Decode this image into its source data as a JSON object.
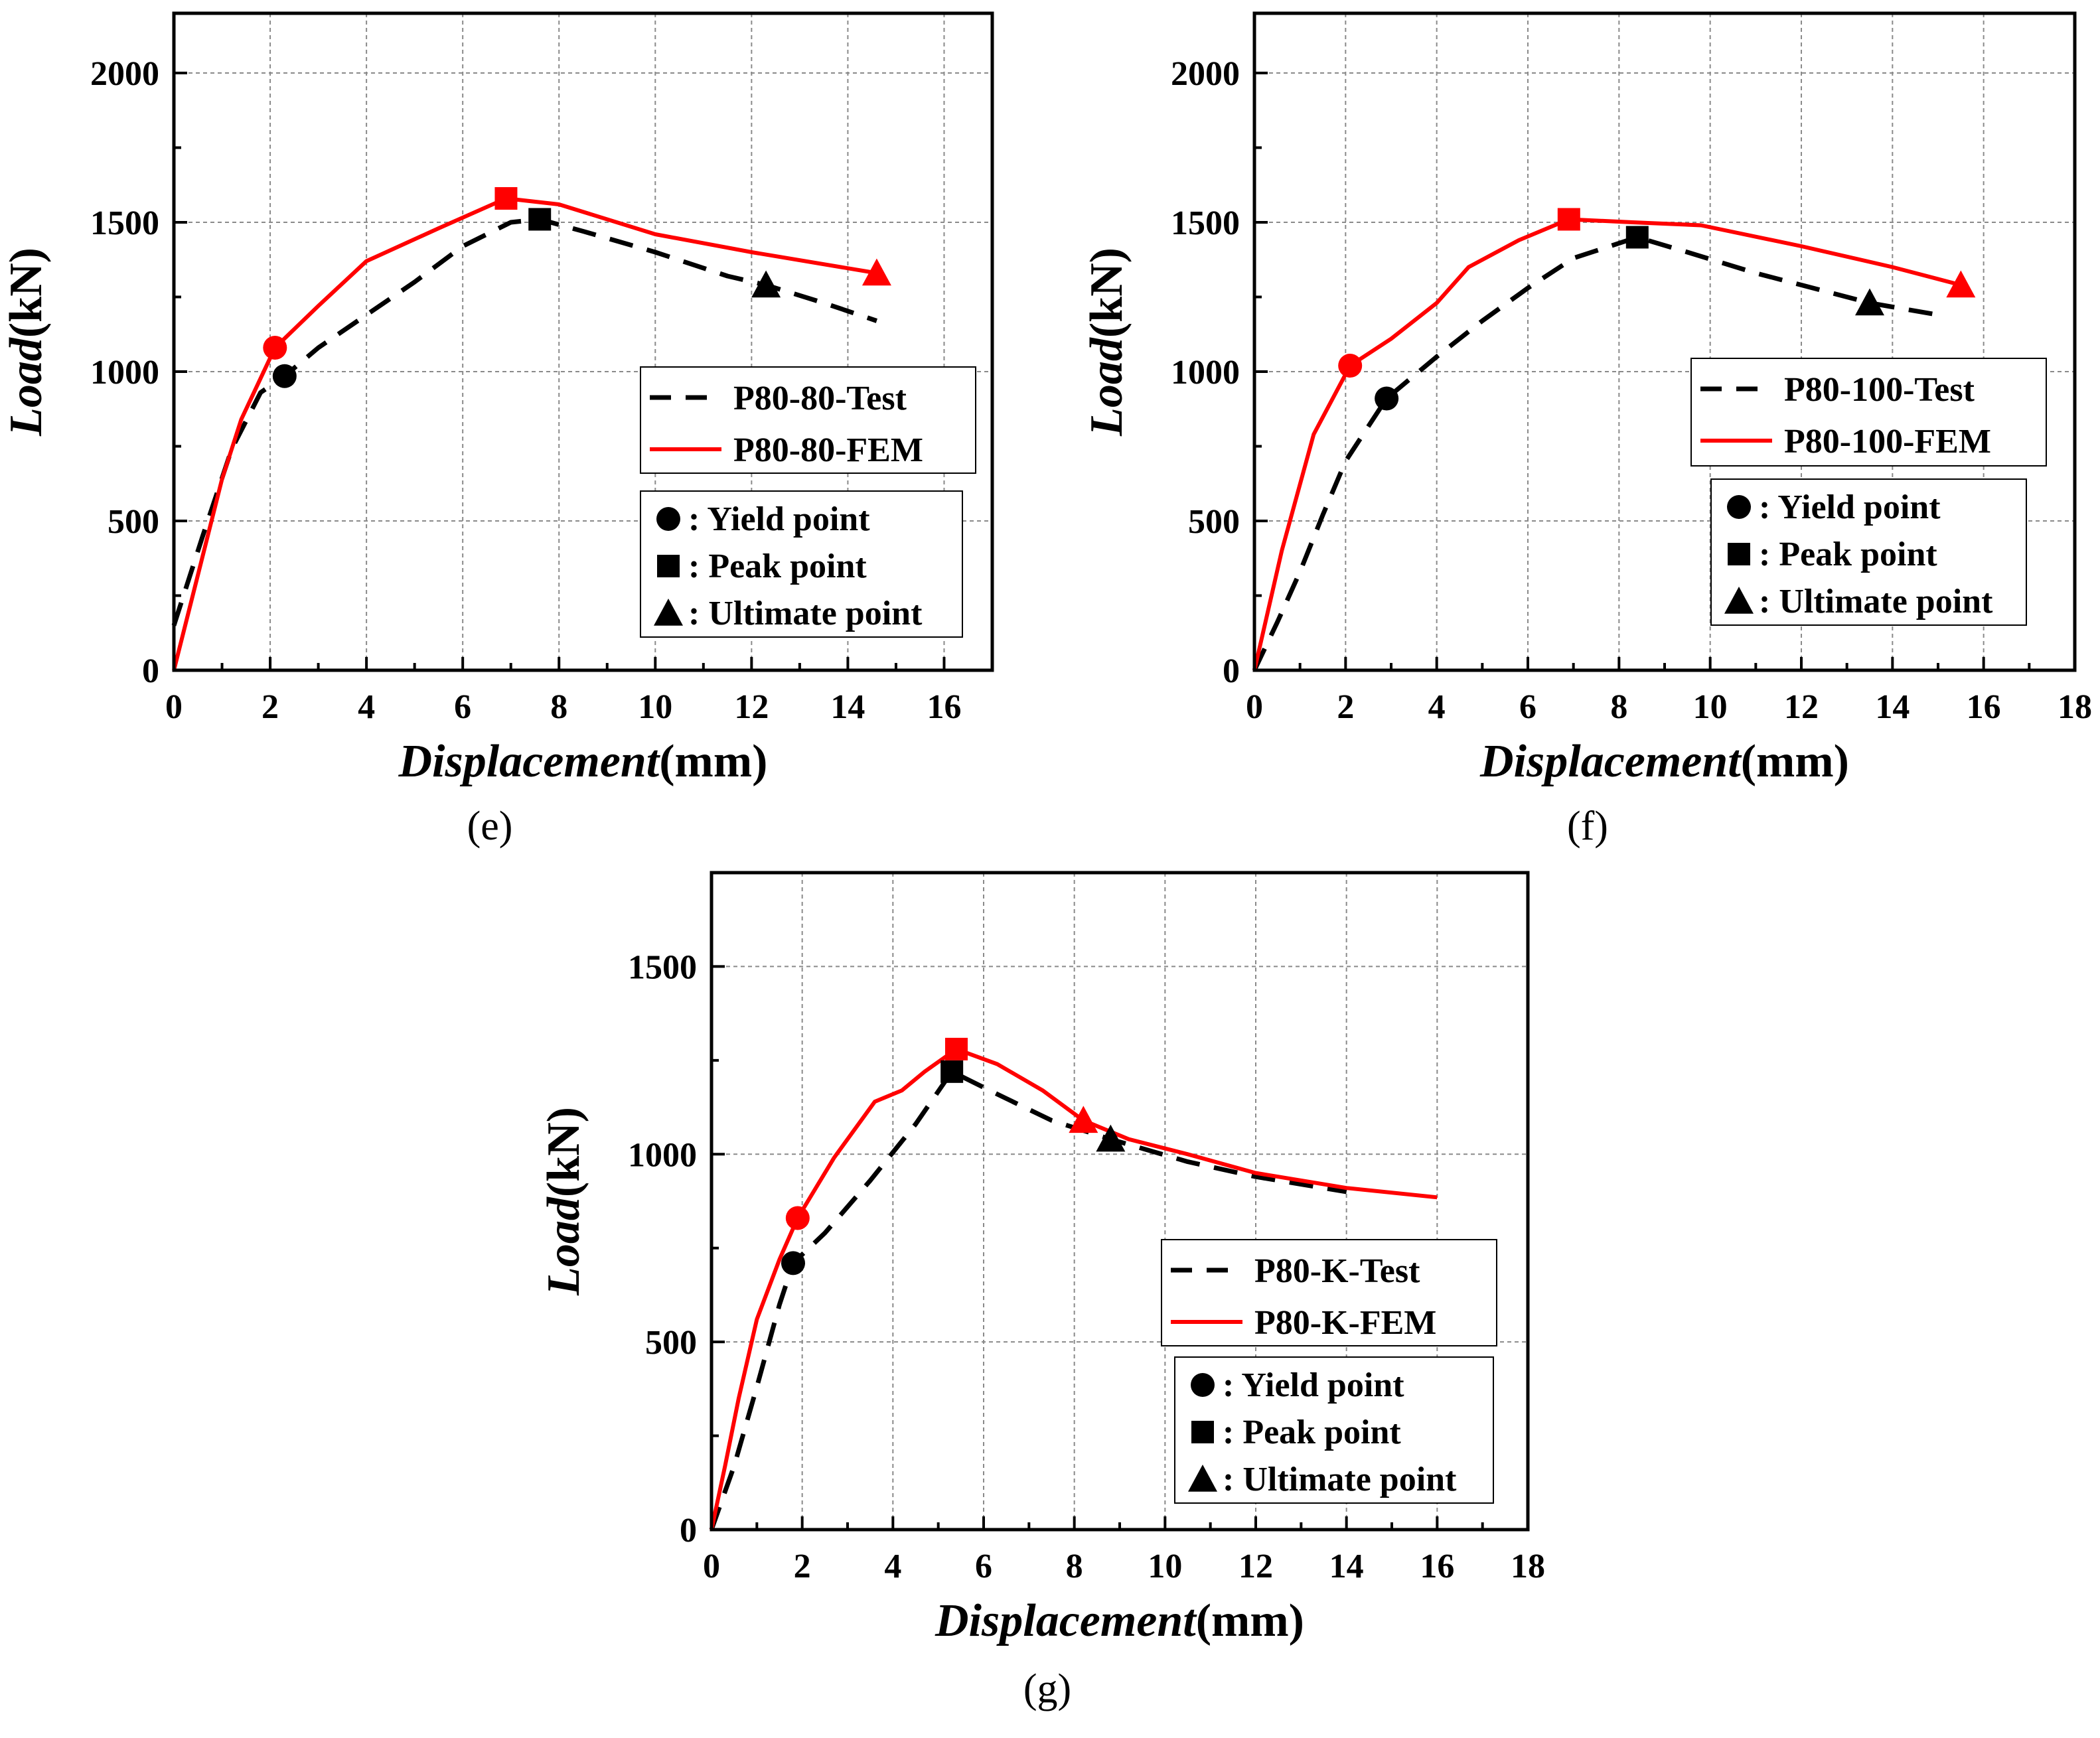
{
  "chart_data": [
    {
      "type": "line",
      "panel": "(e)",
      "xlabel_italic": "Displacement",
      "xlabel_unit": "(mm)",
      "ylabel_italic": "Load",
      "ylabel_unit": "(kN)",
      "xlim": [
        0,
        17
      ],
      "ylim": [
        0,
        2200
      ],
      "xticks": [
        0,
        2,
        4,
        6,
        8,
        10,
        12,
        14,
        16
      ],
      "yticks": [
        0,
        500,
        1000,
        1500,
        2000
      ],
      "grid": true,
      "legend": {
        "placement": "right-middle",
        "entries": [
          "P80-80-Test",
          "P80-80-FEM"
        ]
      },
      "marker_legend": {
        "placement": "bottom-right",
        "entries": [
          ": Yield point",
          ": Peak point",
          ": Ultimate point"
        ]
      },
      "series": [
        {
          "name": "P80-80-Test",
          "color": "#000000",
          "style": "dashed",
          "x": [
            0,
            0.6,
            1.2,
            1.8,
            2.3,
            3.0,
            4.0,
            5.0,
            6.0,
            7.0,
            7.6,
            8.5,
            10.0,
            11.5,
            12.3,
            13.5,
            14.6
          ],
          "y": [
            150,
            450,
            740,
            930,
            985,
            1080,
            1190,
            1300,
            1420,
            1500,
            1510,
            1470,
            1400,
            1320,
            1290,
            1230,
            1170
          ],
          "yield": [
            2.3,
            985
          ],
          "peak": [
            7.6,
            1510
          ],
          "ultimate": [
            12.3,
            1290
          ]
        },
        {
          "name": "P80-80-FEM",
          "color": "#ff0000",
          "style": "solid",
          "x": [
            0,
            0.5,
            1.0,
            1.4,
            2.1,
            3.0,
            4.0,
            5.5,
            6.9,
            8.0,
            10.0,
            12.0,
            14.6
          ],
          "y": [
            0,
            320,
            640,
            840,
            1080,
            1220,
            1370,
            1480,
            1580,
            1560,
            1460,
            1400,
            1330
          ],
          "yield": [
            2.1,
            1080
          ],
          "peak": [
            6.9,
            1580
          ],
          "ultimate": [
            14.6,
            1330
          ]
        }
      ]
    },
    {
      "type": "line",
      "panel": "(f)",
      "xlabel_italic": "Displacement",
      "xlabel_unit": "(mm)",
      "ylabel_italic": "Load",
      "ylabel_unit": "(kN)",
      "xlim": [
        0,
        18
      ],
      "ylim": [
        0,
        2200
      ],
      "xticks": [
        0,
        2,
        4,
        6,
        8,
        10,
        12,
        14,
        16,
        18
      ],
      "yticks": [
        0,
        500,
        1000,
        1500,
        2000
      ],
      "grid": true,
      "legend": {
        "placement": "right-middle",
        "entries": [
          "P80-100-Test",
          "P80-100-FEM"
        ]
      },
      "marker_legend": {
        "placement": "bottom-right",
        "entries": [
          ": Yield point",
          ": Peak point",
          ": Ultimate point"
        ]
      },
      "series": [
        {
          "name": "P80-100-Test",
          "color": "#000000",
          "style": "dashed",
          "x": [
            0,
            0.5,
            1.0,
            1.5,
            2.0,
            2.9,
            4.0,
            5.0,
            6.0,
            7.0,
            8.4,
            9.5,
            11.0,
            12.5,
            13.5,
            15.0
          ],
          "y": [
            0,
            160,
            330,
            520,
            700,
            910,
            1050,
            1170,
            1280,
            1380,
            1450,
            1400,
            1330,
            1270,
            1230,
            1190
          ],
          "yield": [
            2.9,
            910
          ],
          "peak": [
            8.4,
            1450
          ],
          "ultimate": [
            13.5,
            1230
          ]
        },
        {
          "name": "P80-100-FEM",
          "color": "#ff0000",
          "style": "solid",
          "x": [
            0,
            0.6,
            1.3,
            2.1,
            3.0,
            4.0,
            4.7,
            5.8,
            6.9,
            8.3,
            9.8,
            12.0,
            14.0,
            15.5
          ],
          "y": [
            0,
            400,
            790,
            1020,
            1110,
            1230,
            1350,
            1440,
            1510,
            1500,
            1490,
            1420,
            1350,
            1290
          ],
          "yield": [
            2.1,
            1020
          ],
          "peak": [
            6.9,
            1510
          ],
          "ultimate": [
            15.5,
            1290
          ]
        }
      ]
    },
    {
      "type": "line",
      "panel": "(g)",
      "xlabel_italic": "Displacement",
      "xlabel_unit": "(mm)",
      "ylabel_italic": "Load",
      "ylabel_unit": "(kN)",
      "xlim": [
        0,
        18
      ],
      "ylim": [
        0,
        1750
      ],
      "xticks": [
        0,
        2,
        4,
        6,
        8,
        10,
        12,
        14,
        16,
        18
      ],
      "yticks": [
        0,
        500,
        1000,
        1500
      ],
      "grid": true,
      "legend": {
        "placement": "right-middle",
        "entries": [
          "P80-K-Test",
          "P80-K-FEM"
        ]
      },
      "marker_legend": {
        "placement": "bottom-right",
        "entries": [
          ": Yield point",
          ": Peak point",
          ": Ultimate point"
        ]
      },
      "series": [
        {
          "name": "P80-K-Test",
          "color": "#000000",
          "style": "dashed",
          "x": [
            0,
            0.5,
            1.0,
            1.5,
            1.8,
            2.5,
            3.5,
            4.5,
            5.3,
            6.3,
            7.5,
            8.8,
            10.5,
            12.0,
            13.5,
            14.0
          ],
          "y": [
            0,
            170,
            380,
            600,
            710,
            790,
            930,
            1080,
            1220,
            1160,
            1090,
            1040,
            980,
            940,
            910,
            900
          ],
          "yield": [
            1.8,
            710
          ],
          "peak": [
            5.3,
            1220
          ],
          "ultimate": [
            8.8,
            1040
          ]
        },
        {
          "name": "P80-K-FEM",
          "color": "#ff0000",
          "style": "solid",
          "x": [
            0,
            0.3,
            0.6,
            1.0,
            1.5,
            1.9,
            2.7,
            3.6,
            4.2,
            4.7,
            5.4,
            6.3,
            7.3,
            8.2,
            9.2,
            10.5,
            12.0,
            14.0,
            16.0
          ],
          "y": [
            0,
            170,
            350,
            560,
            720,
            830,
            990,
            1140,
            1170,
            1220,
            1280,
            1240,
            1170,
            1090,
            1040,
            1000,
            950,
            910,
            885
          ],
          "yield": [
            1.9,
            830
          ],
          "peak": [
            5.4,
            1280
          ],
          "ultimate": [
            8.2,
            1090
          ]
        }
      ]
    }
  ]
}
